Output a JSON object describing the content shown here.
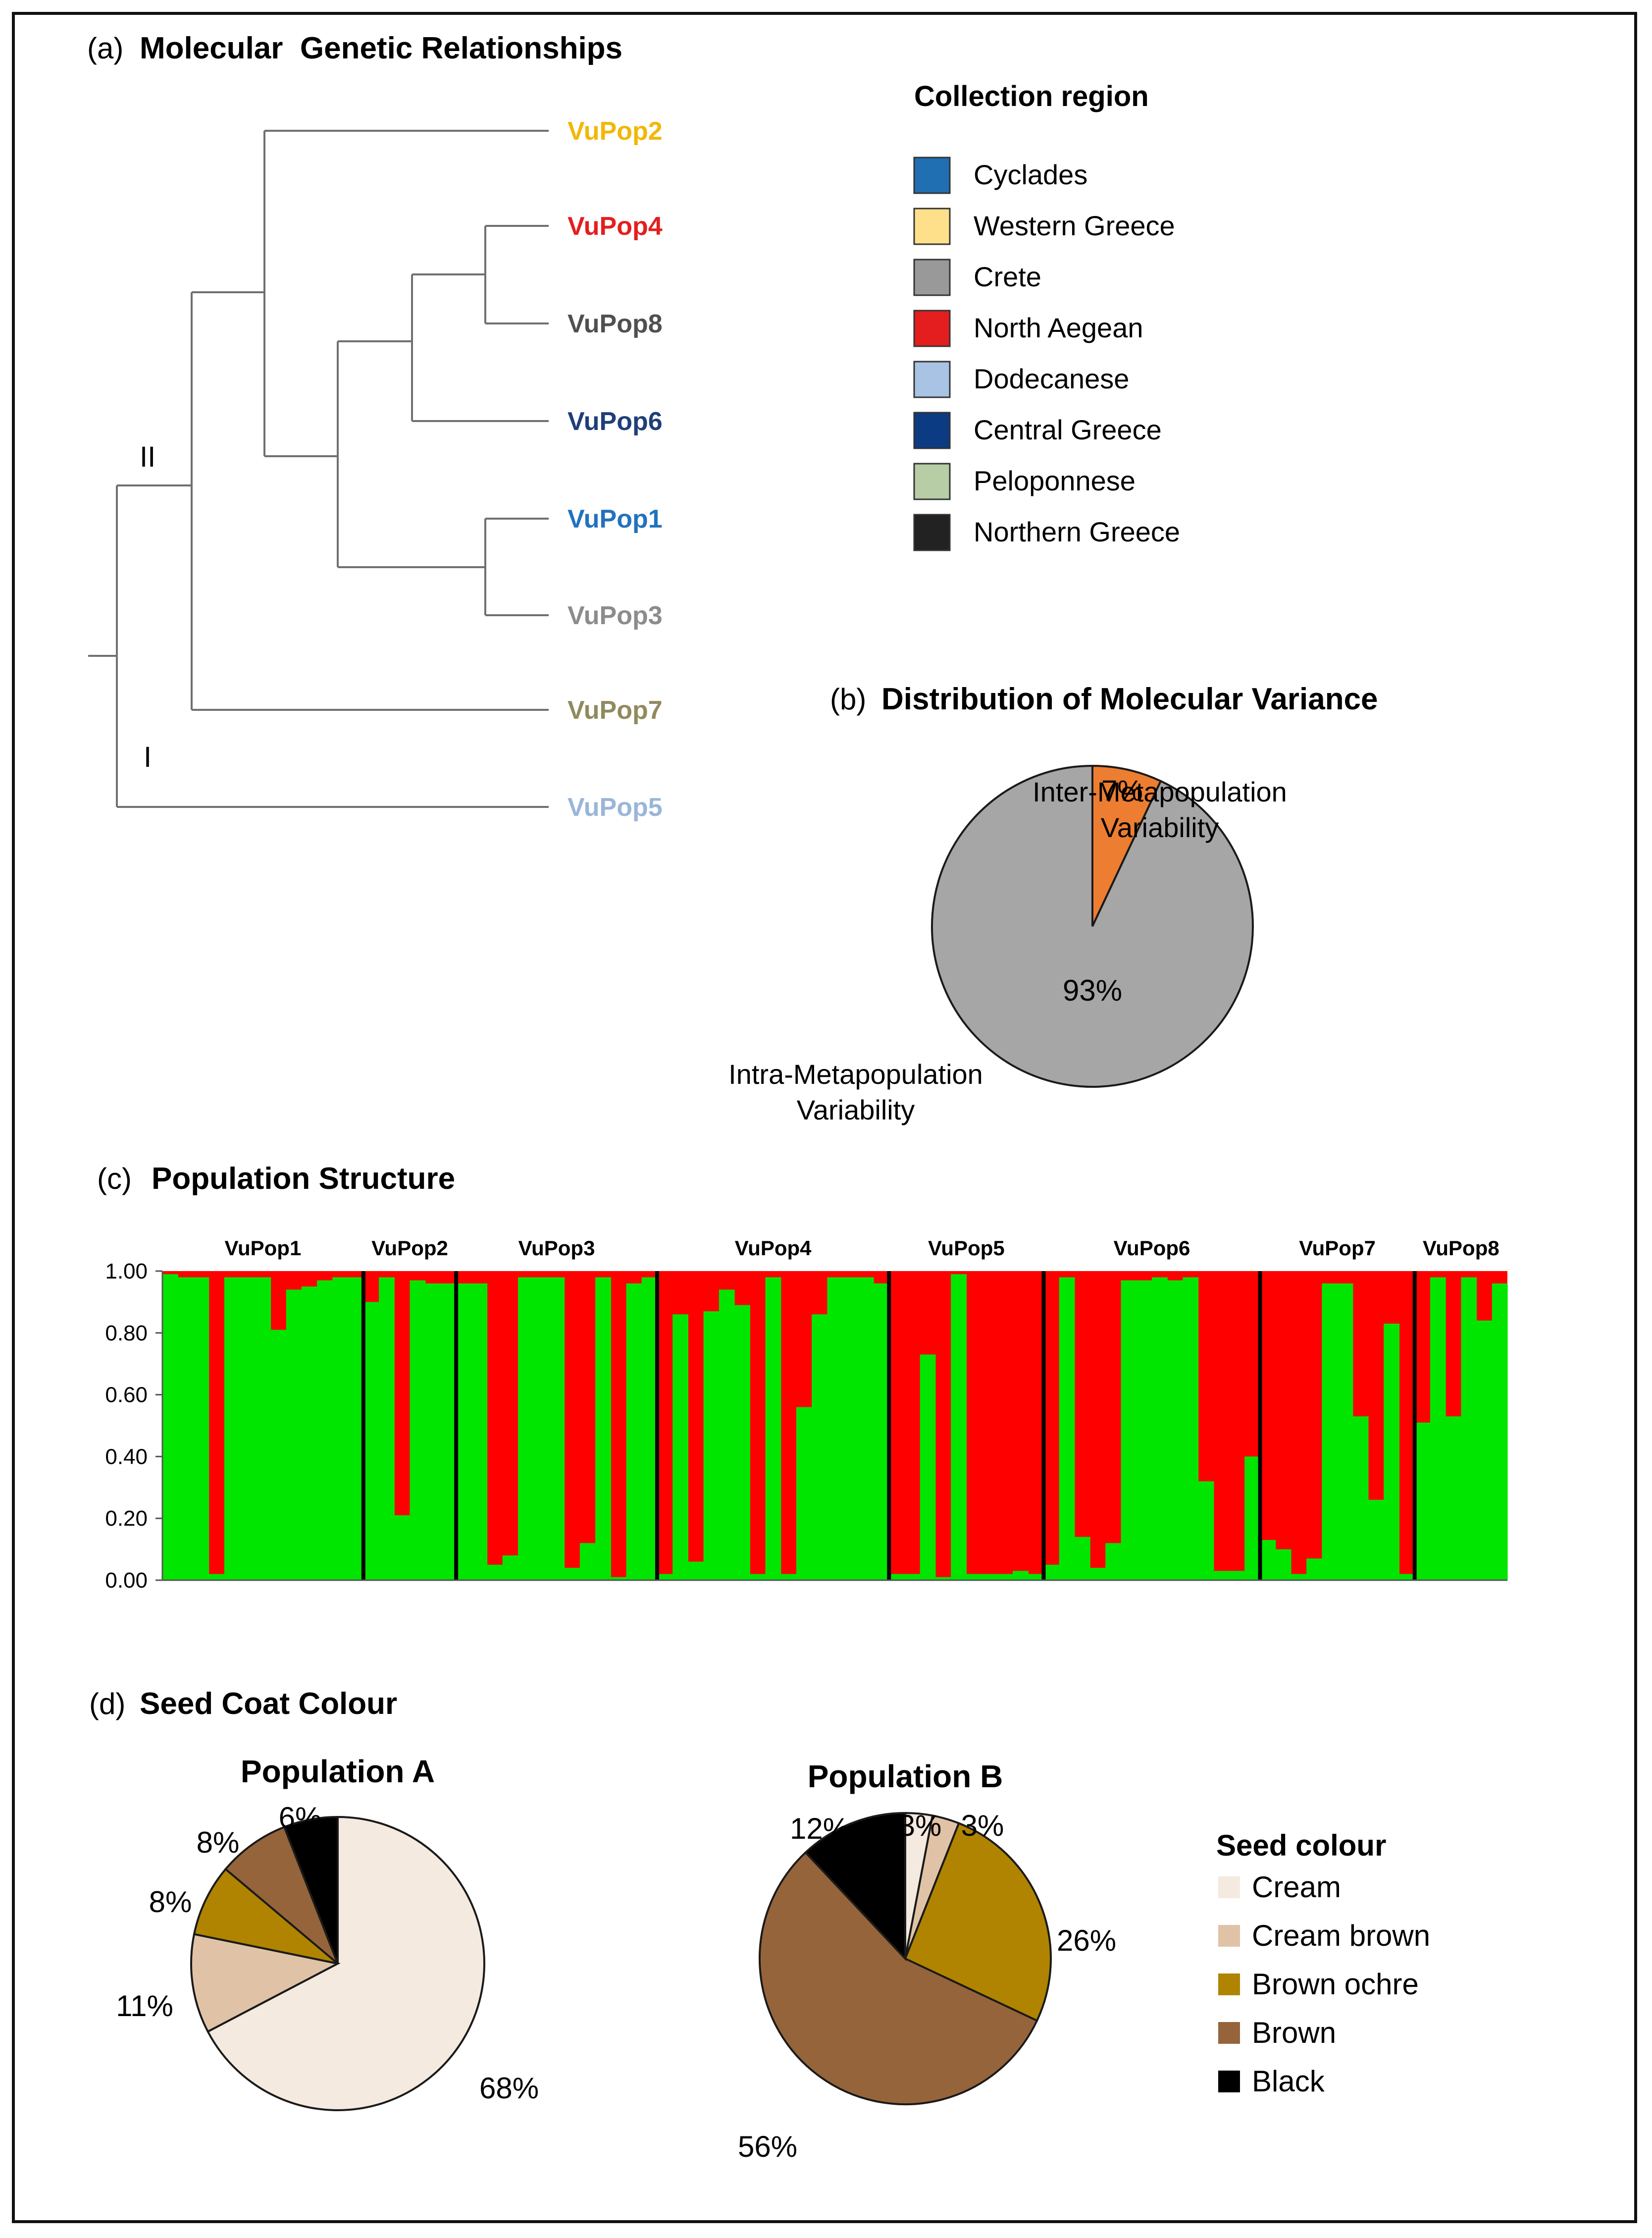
{
  "panel_a": {
    "label": "(a)",
    "title": "Molecular  Genetic Relationships",
    "clade_labels": [
      "II",
      "I"
    ],
    "tips": [
      {
        "name": "VuPop2",
        "color": "#F2B705"
      },
      {
        "name": "VuPop4",
        "color": "#E41E1E"
      },
      {
        "name": "VuPop8",
        "color": "#505050"
      },
      {
        "name": "VuPop6",
        "color": "#1F3E7A"
      },
      {
        "name": "VuPop1",
        "color": "#2272BE"
      },
      {
        "name": "VuPop3",
        "color": "#8C8C8C"
      },
      {
        "name": "VuPop7",
        "color": "#908A5E"
      },
      {
        "name": "VuPop5",
        "color": "#9AB5D9"
      }
    ]
  },
  "legend_region": {
    "title": "Collection region",
    "items": [
      {
        "label": "Cyclades",
        "color": "#1F6FB2"
      },
      {
        "label": "Western Greece",
        "color": "#FFE08A"
      },
      {
        "label": "Crete",
        "color": "#999999"
      },
      {
        "label": "North Aegean",
        "color": "#E41E1E"
      },
      {
        "label": "Dodecanese",
        "color": "#A8C3E3"
      },
      {
        "label": "Central Greece",
        "color": "#0B3B82"
      },
      {
        "label": "Peloponnese",
        "color": "#B6CDA6"
      },
      {
        "label": "Northern Greece",
        "color": "#222222"
      }
    ]
  },
  "panel_b": {
    "label": "(b)",
    "title": "Distribution of Molecular Variance",
    "chart_data": {
      "type": "pie",
      "slices": [
        {
          "label": "Inter-Metapopulation\nVariability",
          "value": 7,
          "text": "7%",
          "color": "#ED7D31"
        },
        {
          "label": "Intra-Metapopulation\nVariability",
          "value": 93,
          "text": "93%",
          "color": "#A6A6A6"
        }
      ]
    }
  },
  "panel_c": {
    "label": "(c)",
    "title": "Population Structure",
    "chart_data": {
      "type": "bar",
      "stacked": true,
      "ylim": [
        0,
        1
      ],
      "yticks": [
        "0.00",
        "0.20",
        "0.40",
        "0.60",
        "0.80",
        "1.00"
      ],
      "colors": {
        "cluster_green": "#00E600",
        "cluster_red": "#FF0000"
      },
      "groups": [
        {
          "name": "VuPop1",
          "green": [
            0.99,
            0.98,
            0.98,
            0.02,
            0.98,
            0.98,
            0.98,
            0.81,
            0.94,
            0.95,
            0.97,
            0.98,
            0.98
          ]
        },
        {
          "name": "VuPop2",
          "green": [
            0.9,
            0.98,
            0.21,
            0.97,
            0.96,
            0.96
          ]
        },
        {
          "name": "VuPop3",
          "green": [
            0.96,
            0.96,
            0.05,
            0.08,
            0.98,
            0.98,
            0.98,
            0.04,
            0.12,
            0.98,
            0.01,
            0.96,
            0.98
          ]
        },
        {
          "name": "VuPop4",
          "green": [
            0.02,
            0.86,
            0.06,
            0.87,
            0.94,
            0.89,
            0.02,
            0.98,
            0.02,
            0.56,
            0.86,
            0.98,
            0.98,
            0.98,
            0.96
          ]
        },
        {
          "name": "VuPop5",
          "green": [
            0.02,
            0.02,
            0.73,
            0.01,
            0.99,
            0.02,
            0.02,
            0.02,
            0.03,
            0.02
          ]
        },
        {
          "name": "VuPop6",
          "green": [
            0.05,
            0.98,
            0.14,
            0.04,
            0.12,
            0.97,
            0.97,
            0.98,
            0.97,
            0.98,
            0.32,
            0.03,
            0.03,
            0.4
          ]
        },
        {
          "name": "VuPop7",
          "green": [
            0.13,
            0.1,
            0.02,
            0.07,
            0.96,
            0.96,
            0.53,
            0.26,
            0.83,
            0.02
          ]
        },
        {
          "name": "VuPop8",
          "green": [
            0.51,
            0.98,
            0.53,
            0.98,
            0.84,
            0.96
          ]
        }
      ]
    }
  },
  "panel_d": {
    "label": "(d)",
    "title": "Seed Coat Colour",
    "legend_title": "Seed colour",
    "categories": [
      {
        "name": "Cream",
        "color": "#F5EADF"
      },
      {
        "name": "Cream brown",
        "color": "#E0C3A7"
      },
      {
        "name": "Brown ochre",
        "color": "#B08400"
      },
      {
        "name": "Brown",
        "color": "#96643A"
      },
      {
        "name": "Black",
        "color": "#000000"
      }
    ],
    "chart_data": [
      {
        "type": "pie",
        "title": "Population A",
        "values": [
          68,
          11,
          8,
          8,
          6
        ],
        "labels": [
          "68%",
          "11%",
          "8%",
          "8%",
          "6%"
        ]
      },
      {
        "type": "pie",
        "title": "Population B",
        "values": [
          3,
          3,
          26,
          56,
          12
        ],
        "labels": [
          "3%",
          "3%",
          "26%",
          "56%",
          "12%"
        ]
      }
    ]
  }
}
